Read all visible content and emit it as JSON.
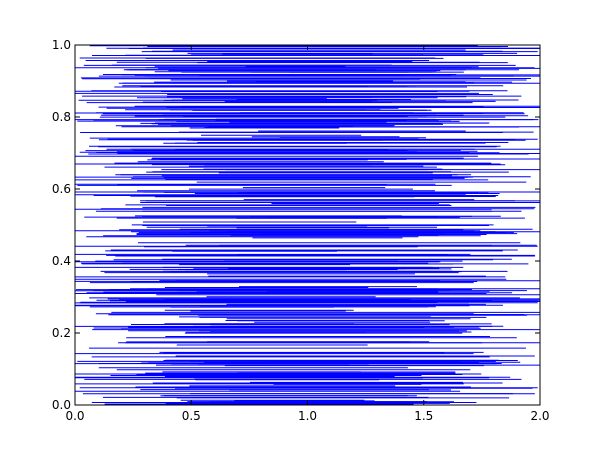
{
  "chart_data": {
    "type": "line",
    "title": "",
    "xlabel": "",
    "ylabel": "",
    "xlim": [
      0.0,
      2.0
    ],
    "ylim": [
      0.0,
      1.0
    ],
    "grid": false,
    "legend": "none",
    "x_ticks": [
      {
        "value": 0.0,
        "label": "0.0"
      },
      {
        "value": 0.5,
        "label": "0.5"
      },
      {
        "value": 1.0,
        "label": "1.0"
      },
      {
        "value": 1.5,
        "label": "1.5"
      },
      {
        "value": 2.0,
        "label": "2.0"
      }
    ],
    "y_ticks": [
      {
        "value": 0.0,
        "label": "0.0"
      },
      {
        "value": 0.2,
        "label": "0.2"
      },
      {
        "value": 0.4,
        "label": "0.4"
      },
      {
        "value": 0.6,
        "label": "0.6"
      },
      {
        "value": 0.8,
        "label": "0.8"
      },
      {
        "value": 1.0,
        "label": "1.0"
      }
    ],
    "colors": {
      "segment": "#0000ff",
      "axis": "#000000",
      "background": "#ffffff"
    },
    "segment_count": 420,
    "series": [
      {
        "segments": [
          {
            "y": 1.0,
            "x0": 0.27,
            "x1": 1.6
          },
          {
            "y": 0.986,
            "x0": 0.42,
            "x1": 1.68
          },
          {
            "y": 0.964,
            "x0": 0.02,
            "x1": 1.55
          },
          {
            "y": 0.952,
            "x0": 0.18,
            "x1": 1.74
          },
          {
            "y": 0.931,
            "x0": 0.21,
            "x1": 1.91
          },
          {
            "y": 0.918,
            "x0": 0.12,
            "x1": 1.64
          },
          {
            "y": 0.897,
            "x0": 0.34,
            "x1": 1.88
          },
          {
            "y": 0.873,
            "x0": 0.07,
            "x1": 1.86
          },
          {
            "y": 0.858,
            "x0": 0.03,
            "x1": 1.92
          },
          {
            "y": 0.84,
            "x0": 0.05,
            "x1": 1.71
          },
          {
            "y": 0.812,
            "x0": 0.09,
            "x1": 1.93
          },
          {
            "y": 0.781,
            "x0": 0.33,
            "x1": 1.58
          },
          {
            "y": 0.738,
            "x0": 0.14,
            "x1": 1.99
          },
          {
            "y": 0.719,
            "x0": 0.06,
            "x1": 1.83
          },
          {
            "y": 0.702,
            "x0": 0.02,
            "x1": 1.47
          },
          {
            "y": 0.672,
            "x0": 0.17,
            "x1": 1.79
          },
          {
            "y": 0.634,
            "x0": 0.25,
            "x1": 1.96
          },
          {
            "y": 0.61,
            "x0": 0.01,
            "x1": 1.62
          },
          {
            "y": 0.582,
            "x0": 0.08,
            "x1": 1.82
          },
          {
            "y": 0.549,
            "x0": 0.29,
            "x1": 1.98
          },
          {
            "y": 0.522,
            "x0": 0.04,
            "x1": 1.56
          },
          {
            "y": 0.487,
            "x0": 0.19,
            "x1": 1.67
          },
          {
            "y": 0.441,
            "x0": 0.0,
            "x1": 1.99
          },
          {
            "y": 0.428,
            "x0": 0.13,
            "x1": 1.84
          },
          {
            "y": 0.392,
            "x0": 0.03,
            "x1": 1.95
          },
          {
            "y": 0.371,
            "x0": 0.11,
            "x1": 1.86
          },
          {
            "y": 0.343,
            "x0": 0.24,
            "x1": 1.73
          },
          {
            "y": 0.312,
            "x0": 0.05,
            "x1": 1.88
          },
          {
            "y": 0.284,
            "x0": 0.02,
            "x1": 1.99
          },
          {
            "y": 0.251,
            "x0": 0.15,
            "x1": 1.85
          },
          {
            "y": 0.214,
            "x0": 0.08,
            "x1": 1.63
          },
          {
            "y": 0.187,
            "x0": 0.22,
            "x1": 1.9
          },
          {
            "y": 0.158,
            "x0": 0.06,
            "x1": 1.94
          },
          {
            "y": 0.121,
            "x0": 0.01,
            "x1": 1.81
          },
          {
            "y": 0.098,
            "x0": 0.18,
            "x1": 1.7
          },
          {
            "y": 0.071,
            "x0": 0.04,
            "x1": 1.92
          },
          {
            "y": 0.048,
            "x0": 0.02,
            "x1": 1.99
          },
          {
            "y": 0.021,
            "x0": 0.12,
            "x1": 1.52
          }
        ]
      }
    ]
  }
}
